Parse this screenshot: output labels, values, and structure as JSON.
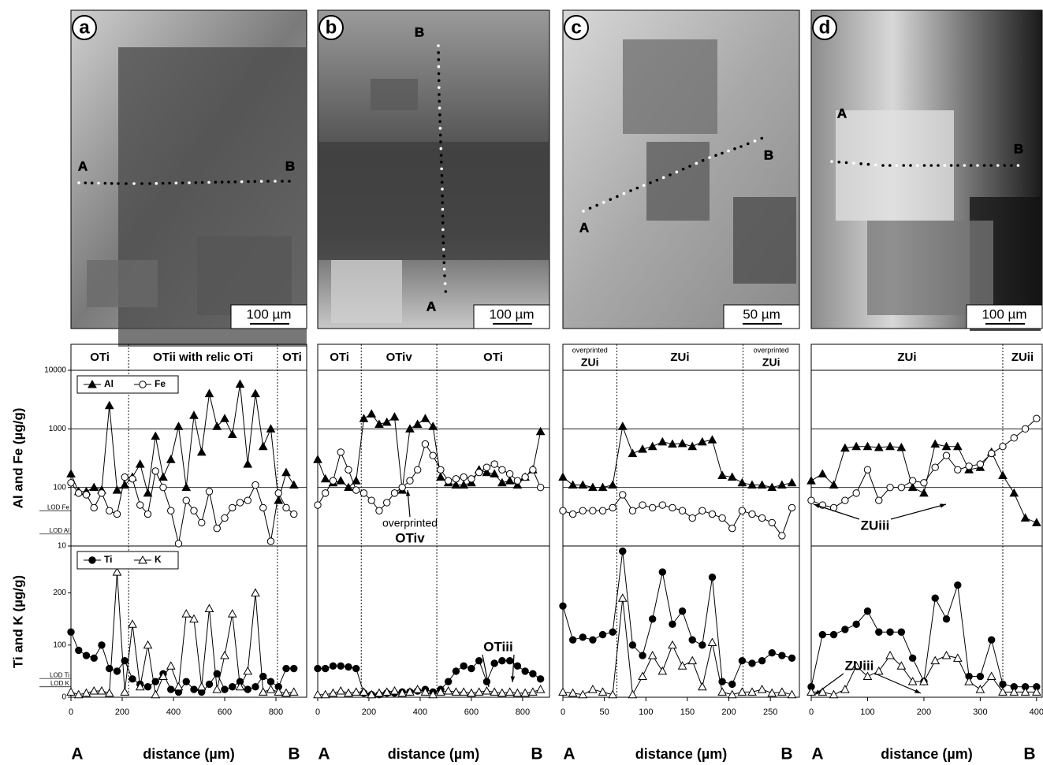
{
  "images": [
    {
      "label": "a",
      "scale": "100 µm",
      "start": "A",
      "end": "B"
    },
    {
      "label": "b",
      "scale": "100 µm",
      "start": "A",
      "end": "B"
    },
    {
      "label": "c",
      "scale": "50 µm",
      "start": "A",
      "end": "B"
    },
    {
      "label": "d",
      "scale": "100 µm",
      "start": "A",
      "end": "B"
    }
  ],
  "chart_data": [
    {
      "type": "line",
      "xlabel": "distance (µm)",
      "x_start": "A",
      "x_end": "B",
      "xlim": [
        0,
        920
      ],
      "xticks": [
        0,
        200,
        400,
        600,
        800
      ],
      "zones": [
        {
          "label": "OTi",
          "end": 225
        },
        {
          "label": "OTii with relic OTi",
          "end": 806
        },
        {
          "label": "OTi"
        }
      ],
      "upper": {
        "ylabel": "Al and Fe (µg/g)",
        "log": true,
        "ylim": [
          10,
          10000
        ],
        "yticks": [
          10,
          {
            "value": 16,
            "label": "LOD Al"
          },
          {
            "value": 40,
            "label": "LOD Fe"
          },
          100,
          1000,
          10000
        ]
      },
      "lower": {
        "ylabel": "Ti and K (µg/g)",
        "ylim": [
          0,
          290
        ],
        "yticks": [
          0,
          {
            "value": 20,
            "label": "LOD K"
          },
          {
            "value": 36,
            "label": "LOD Ti"
          },
          100,
          200
        ]
      },
      "grid": true,
      "annotations": [],
      "x": [
        0,
        30,
        60,
        90,
        120,
        150,
        180,
        210,
        240,
        270,
        300,
        330,
        360,
        390,
        420,
        450,
        480,
        510,
        540,
        570,
        600,
        630,
        660,
        690,
        720,
        750,
        780,
        810,
        840,
        870
      ],
      "series": [
        {
          "name": "Al",
          "axis": "upper",
          "marker": "triangle",
          "filled": true,
          "color": "#000000",
          "values": [
            170,
            85,
            85,
            100,
            90,
            2500,
            90,
            110,
            150,
            250,
            80,
            750,
            150,
            300,
            1100,
            100,
            1700,
            400,
            4000,
            1100,
            1500,
            800,
            5800,
            250,
            4000,
            500,
            1000,
            60,
            180,
            110
          ]
        },
        {
          "name": "Fe",
          "axis": "upper",
          "marker": "circle",
          "filled": false,
          "color": "#000000",
          "values": [
            120,
            80,
            75,
            45,
            80,
            40,
            35,
            150,
            140,
            50,
            35,
            190,
            100,
            40,
            11,
            60,
            40,
            25,
            85,
            20,
            30,
            45,
            55,
            60,
            110,
            45,
            12,
            80,
            45,
            35
          ]
        },
        {
          "name": "Ti",
          "axis": "lower",
          "marker": "circle",
          "filled": true,
          "color": "#000000",
          "values": [
            125,
            90,
            80,
            75,
            100,
            55,
            50,
            70,
            35,
            25,
            20,
            30,
            45,
            15,
            10,
            30,
            15,
            10,
            25,
            45,
            15,
            20,
            30,
            15,
            20,
            40,
            30,
            20,
            55,
            55
          ]
        },
        {
          "name": "K",
          "axis": "lower",
          "marker": "triangle",
          "filled": false,
          "color": "#000000",
          "values": [
            10,
            5,
            8,
            12,
            12,
            8,
            240,
            10,
            140,
            20,
            100,
            5,
            40,
            60,
            20,
            160,
            150,
            20,
            170,
            15,
            80,
            160,
            20,
            50,
            200,
            10,
            15,
            10,
            8,
            10
          ]
        }
      ]
    },
    {
      "type": "line",
      "xlabel": "distance (µm)",
      "x_start": "A",
      "x_end": "B",
      "xlim": [
        0,
        905
      ],
      "xticks": [
        0,
        200,
        400,
        600,
        800
      ],
      "zones": [
        {
          "label": "OTi",
          "end": 170
        },
        {
          "label": "OTiv",
          "end": 465
        },
        {
          "label": "OTi"
        }
      ],
      "upper": {
        "log": true,
        "ylim": [
          10,
          10000
        ]
      },
      "lower": {
        "ylim": [
          0,
          290
        ]
      },
      "grid": true,
      "annotations": [
        "overprinted",
        "OTiv",
        "OTiii"
      ],
      "x": [
        0,
        30,
        60,
        90,
        120,
        150,
        180,
        210,
        240,
        270,
        300,
        330,
        360,
        390,
        420,
        450,
        480,
        510,
        540,
        570,
        600,
        630,
        660,
        690,
        720,
        750,
        780,
        810,
        840,
        870
      ],
      "series": [
        {
          "axis": "upper",
          "marker": "triangle",
          "filled": true,
          "color": "#000000",
          "values": [
            300,
            140,
            120,
            130,
            100,
            130,
            1500,
            1800,
            1200,
            1300,
            1600,
            90,
            1000,
            1200,
            1500,
            1100,
            150,
            120,
            110,
            110,
            120,
            200,
            180,
            170,
            120,
            130,
            110,
            150,
            200,
            900
          ]
        },
        {
          "axis": "upper",
          "marker": "circle",
          "filled": false,
          "color": "#000000",
          "values": [
            50,
            80,
            130,
            400,
            200,
            90,
            80,
            60,
            40,
            55,
            80,
            100,
            130,
            200,
            550,
            350,
            200,
            130,
            140,
            150,
            140,
            180,
            220,
            250,
            200,
            170,
            130,
            150,
            200,
            100
          ]
        },
        {
          "axis": "lower",
          "marker": "circle",
          "filled": true,
          "color": "#000000",
          "values": [
            55,
            55,
            60,
            60,
            58,
            55,
            8,
            5,
            5,
            8,
            8,
            10,
            10,
            12,
            15,
            10,
            15,
            30,
            50,
            60,
            55,
            70,
            30,
            65,
            70,
            70,
            60,
            50,
            45,
            35
          ]
        },
        {
          "axis": "lower",
          "marker": "triangle",
          "filled": false,
          "color": "#000000",
          "values": [
            5,
            5,
            8,
            12,
            8,
            10,
            10,
            5,
            8,
            10,
            12,
            8,
            10,
            15,
            10,
            5,
            10,
            12,
            10,
            10,
            8,
            10,
            12,
            10,
            8,
            10,
            8,
            8,
            10,
            15
          ]
        }
      ]
    },
    {
      "type": "line",
      "xlabel": "distance (µm)",
      "x_start": "A",
      "x_end": "B",
      "xlim": [
        0,
        285
      ],
      "xticks": [
        0,
        50,
        100,
        150,
        200,
        250
      ],
      "zones": [
        {
          "note": "overprinted",
          "label": "ZUi",
          "end": 65
        },
        {
          "label": "ZUi",
          "end": 217
        },
        {
          "note": "overprinted",
          "label": "ZUi"
        }
      ],
      "upper": {
        "log": true,
        "ylim": [
          10,
          10000
        ]
      },
      "lower": {
        "ylim": [
          0,
          290
        ]
      },
      "grid": true,
      "annotations": [],
      "x": [
        0,
        12,
        24,
        36,
        48,
        60,
        72,
        84,
        96,
        108,
        120,
        132,
        144,
        156,
        168,
        180,
        192,
        204,
        216,
        228,
        240,
        252,
        264,
        276
      ],
      "series": [
        {
          "axis": "upper",
          "marker": "triangle",
          "filled": true,
          "color": "#000000",
          "values": [
            150,
            110,
            110,
            100,
            100,
            110,
            1100,
            380,
            450,
            500,
            600,
            550,
            560,
            500,
            600,
            650,
            160,
            150,
            120,
            110,
            110,
            100,
            110,
            120
          ]
        },
        {
          "axis": "upper",
          "marker": "circle",
          "filled": false,
          "color": "#000000",
          "values": [
            40,
            35,
            40,
            40,
            40,
            45,
            75,
            40,
            50,
            45,
            50,
            45,
            40,
            30,
            40,
            35,
            30,
            20,
            40,
            35,
            30,
            25,
            15,
            45
          ]
        },
        {
          "axis": "lower",
          "marker": "circle",
          "filled": true,
          "color": "#000000",
          "values": [
            175,
            110,
            115,
            110,
            120,
            125,
            280,
            100,
            80,
            150,
            240,
            140,
            165,
            110,
            100,
            230,
            30,
            25,
            70,
            65,
            70,
            85,
            80,
            75
          ]
        },
        {
          "axis": "lower",
          "marker": "triangle",
          "filled": false,
          "color": "#000000",
          "values": [
            10,
            8,
            5,
            15,
            10,
            5,
            190,
            5,
            40,
            80,
            50,
            100,
            60,
            70,
            20,
            105,
            10,
            5,
            10,
            10,
            15,
            8,
            10,
            5
          ]
        }
      ]
    },
    {
      "type": "line",
      "xlabel": "distance (µm)",
      "x_start": "A",
      "x_end": "B",
      "xlim": [
        0,
        410
      ],
      "xticks": [
        0,
        100,
        200,
        300,
        400
      ],
      "zones": [
        {
          "label": "ZUi",
          "end": 340
        },
        {
          "label": "ZUii"
        }
      ],
      "upper": {
        "log": true,
        "ylim": [
          10,
          10000
        ]
      },
      "lower": {
        "ylim": [
          0,
          290
        ]
      },
      "grid": true,
      "annotations": [
        "ZUiii",
        "ZUiii"
      ],
      "x": [
        0,
        20,
        40,
        60,
        80,
        100,
        120,
        140,
        160,
        180,
        200,
        220,
        240,
        260,
        280,
        300,
        320,
        340,
        360,
        380,
        400
      ],
      "series": [
        {
          "axis": "upper",
          "marker": "triangle",
          "filled": true,
          "color": "#000000",
          "values": [
            130,
            170,
            110,
            470,
            500,
            500,
            480,
            500,
            480,
            100,
            80,
            550,
            500,
            500,
            200,
            220,
            400,
            160,
            80,
            30,
            25
          ]
        },
        {
          "axis": "upper",
          "marker": "circle",
          "filled": false,
          "color": "#000000",
          "values": [
            60,
            50,
            45,
            60,
            80,
            200,
            60,
            100,
            100,
            130,
            120,
            220,
            350,
            200,
            230,
            250,
            380,
            500,
            700,
            1000,
            1500
          ]
        },
        {
          "axis": "lower",
          "marker": "circle",
          "filled": true,
          "color": "#000000",
          "values": [
            20,
            120,
            120,
            130,
            140,
            165,
            125,
            125,
            125,
            75,
            30,
            190,
            150,
            215,
            40,
            40,
            110,
            25,
            20,
            20,
            20
          ]
        },
        {
          "axis": "lower",
          "marker": "triangle",
          "filled": false,
          "color": "#000000",
          "values": [
            10,
            10,
            5,
            15,
            60,
            40,
            50,
            80,
            60,
            30,
            30,
            70,
            80,
            75,
            30,
            15,
            40,
            10,
            10,
            10,
            10
          ]
        }
      ]
    }
  ]
}
